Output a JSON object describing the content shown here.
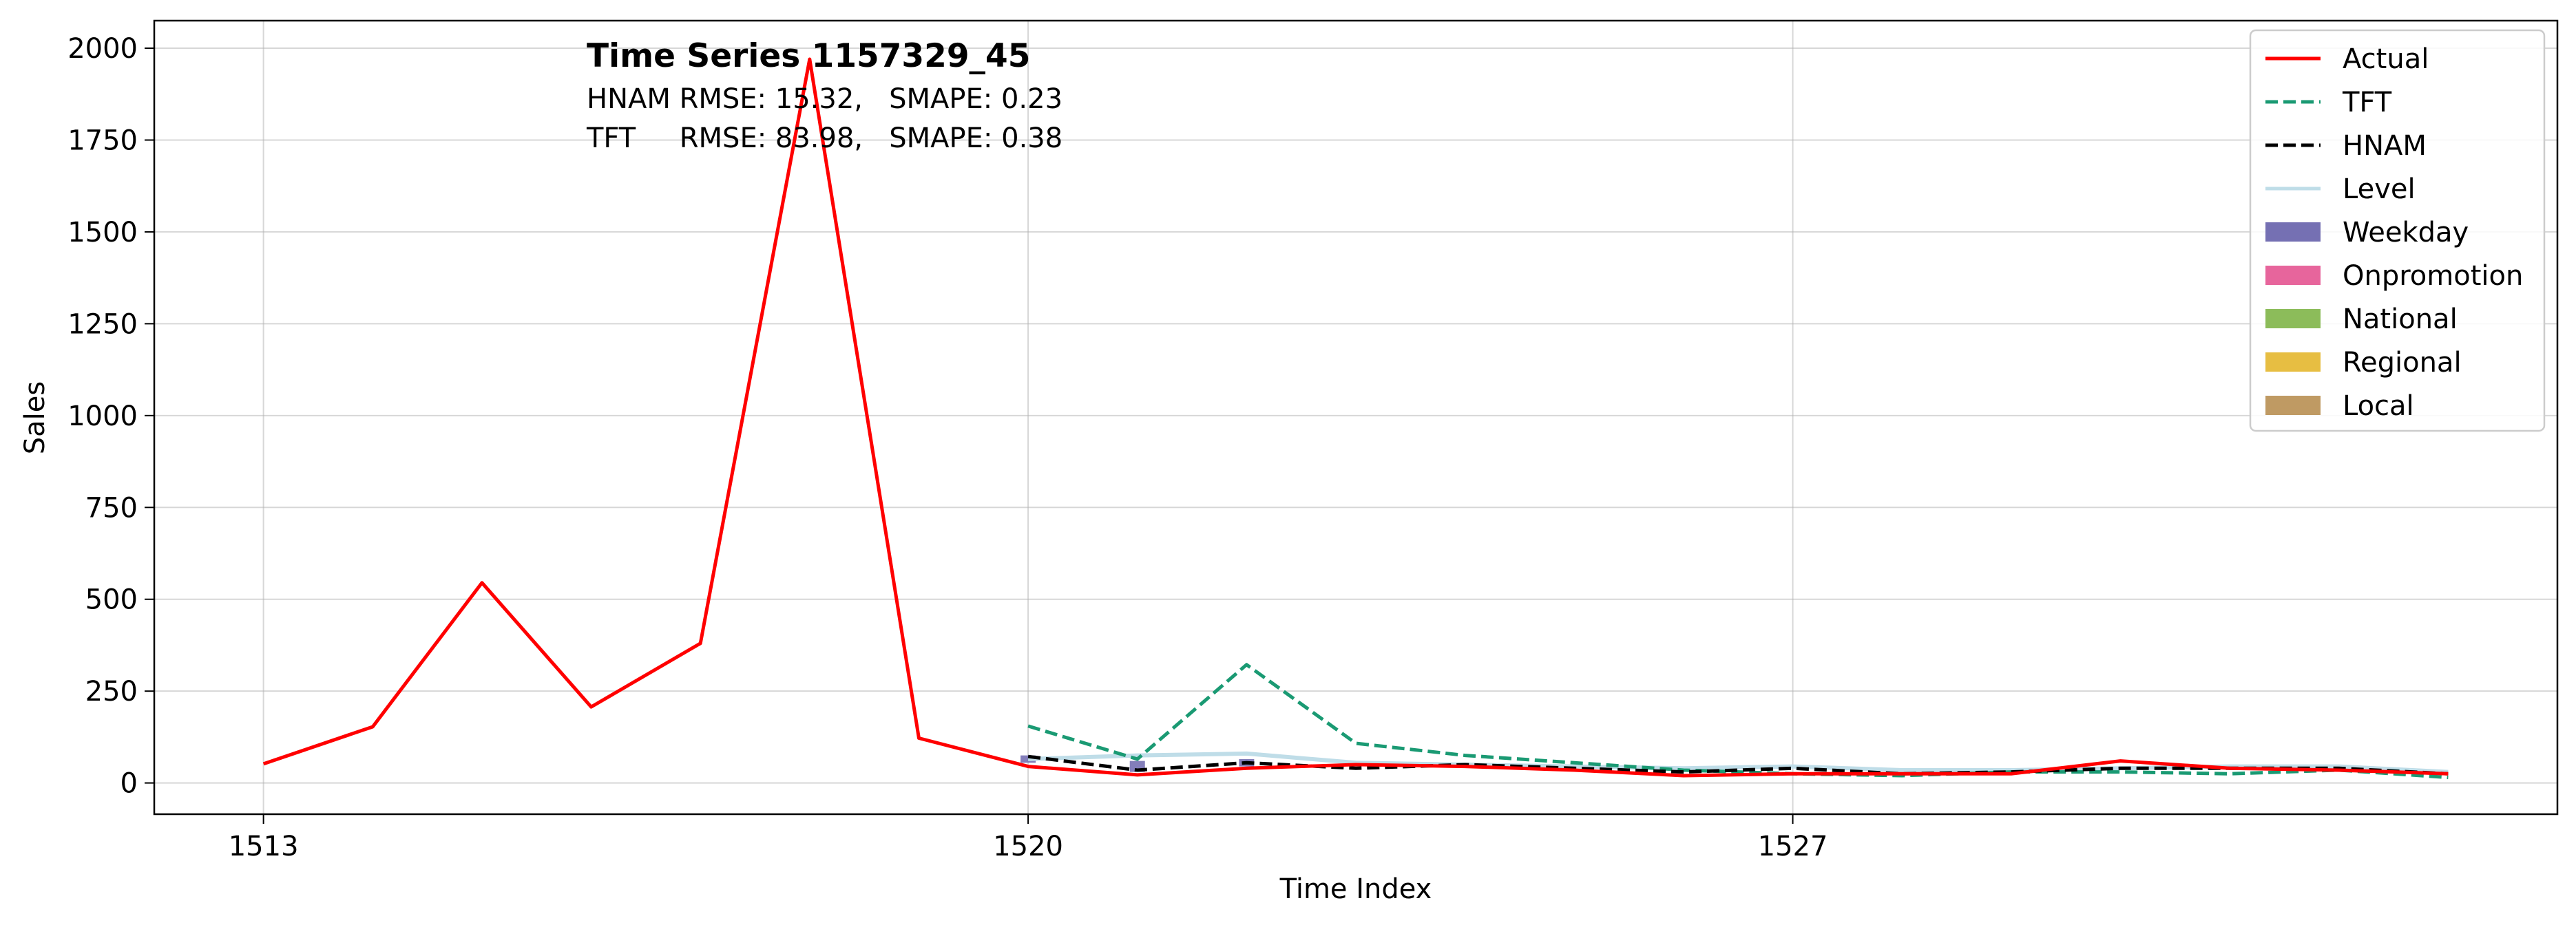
{
  "chart_data": {
    "type": "line",
    "title": "",
    "annotation": {
      "title": "Time Series 1157329_45",
      "lines": [
        "HNAM RMSE: 15.32,   SMAPE: 0.23",
        "TFT     RMSE: 83.98,   SMAPE: 0.38"
      ]
    },
    "xlabel": "Time Index",
    "ylabel": "Sales",
    "xlim": [
      1512.0,
      1534.0
    ],
    "ylim": [
      -85,
      2075
    ],
    "xticks": [
      1513,
      1520,
      1527
    ],
    "yticks": [
      0,
      250,
      500,
      750,
      1000,
      1250,
      1500,
      1750,
      2000
    ],
    "grid": true,
    "legend_position": "top-right",
    "series": [
      {
        "name": "Actual",
        "style": "solid",
        "color": "#ff0000",
        "x": [
          1513,
          1514,
          1515,
          1516,
          1517,
          1518,
          1519,
          1520,
          1521,
          1522,
          1523,
          1524,
          1525,
          1526,
          1527,
          1528,
          1529,
          1530,
          1531,
          1532,
          1533
        ],
        "y": [
          52,
          153,
          545,
          207,
          380,
          1970,
          122,
          45,
          22,
          40,
          50,
          45,
          35,
          20,
          25,
          25,
          25,
          60,
          40,
          35,
          25
        ]
      },
      {
        "name": "TFT",
        "style": "dashed",
        "color": "#1a9a73",
        "x": [
          1520,
          1521,
          1522,
          1523,
          1524,
          1525,
          1526,
          1527,
          1528,
          1529,
          1530,
          1531,
          1532,
          1533
        ],
        "y": [
          155,
          65,
          322,
          108,
          75,
          55,
          35,
          25,
          20,
          30,
          30,
          25,
          35,
          15
        ]
      },
      {
        "name": "HNAM",
        "style": "dashed",
        "color": "#000000",
        "x": [
          1520,
          1521,
          1522,
          1523,
          1524,
          1525,
          1526,
          1527,
          1528,
          1529,
          1530,
          1531,
          1532,
          1533
        ],
        "y": [
          72,
          35,
          55,
          40,
          50,
          40,
          30,
          40,
          25,
          30,
          40,
          40,
          40,
          25
        ]
      },
      {
        "name": "Level",
        "style": "solid",
        "color": "#bfdde8",
        "x": [
          1520,
          1521,
          1522,
          1523,
          1524,
          1525,
          1526,
          1527,
          1528,
          1529,
          1530,
          1531,
          1532,
          1533
        ],
        "y": [
          65,
          75,
          80,
          55,
          50,
          45,
          40,
          45,
          35,
          35,
          40,
          45,
          45,
          30
        ]
      }
    ],
    "components": [
      {
        "name": "Weekday",
        "color": "#7570b3"
      },
      {
        "name": "Onpromotion",
        "color": "#e7659c"
      },
      {
        "name": "National",
        "color": "#8cbc5a"
      },
      {
        "name": "Regional",
        "color": "#e7be42"
      },
      {
        "name": "Local",
        "color": "#bf9a63"
      }
    ],
    "weekday_bars": {
      "x": [
        1520,
        1521,
        1522
      ],
      "low": [
        55,
        30,
        45
      ],
      "high": [
        75,
        60,
        65
      ]
    }
  }
}
